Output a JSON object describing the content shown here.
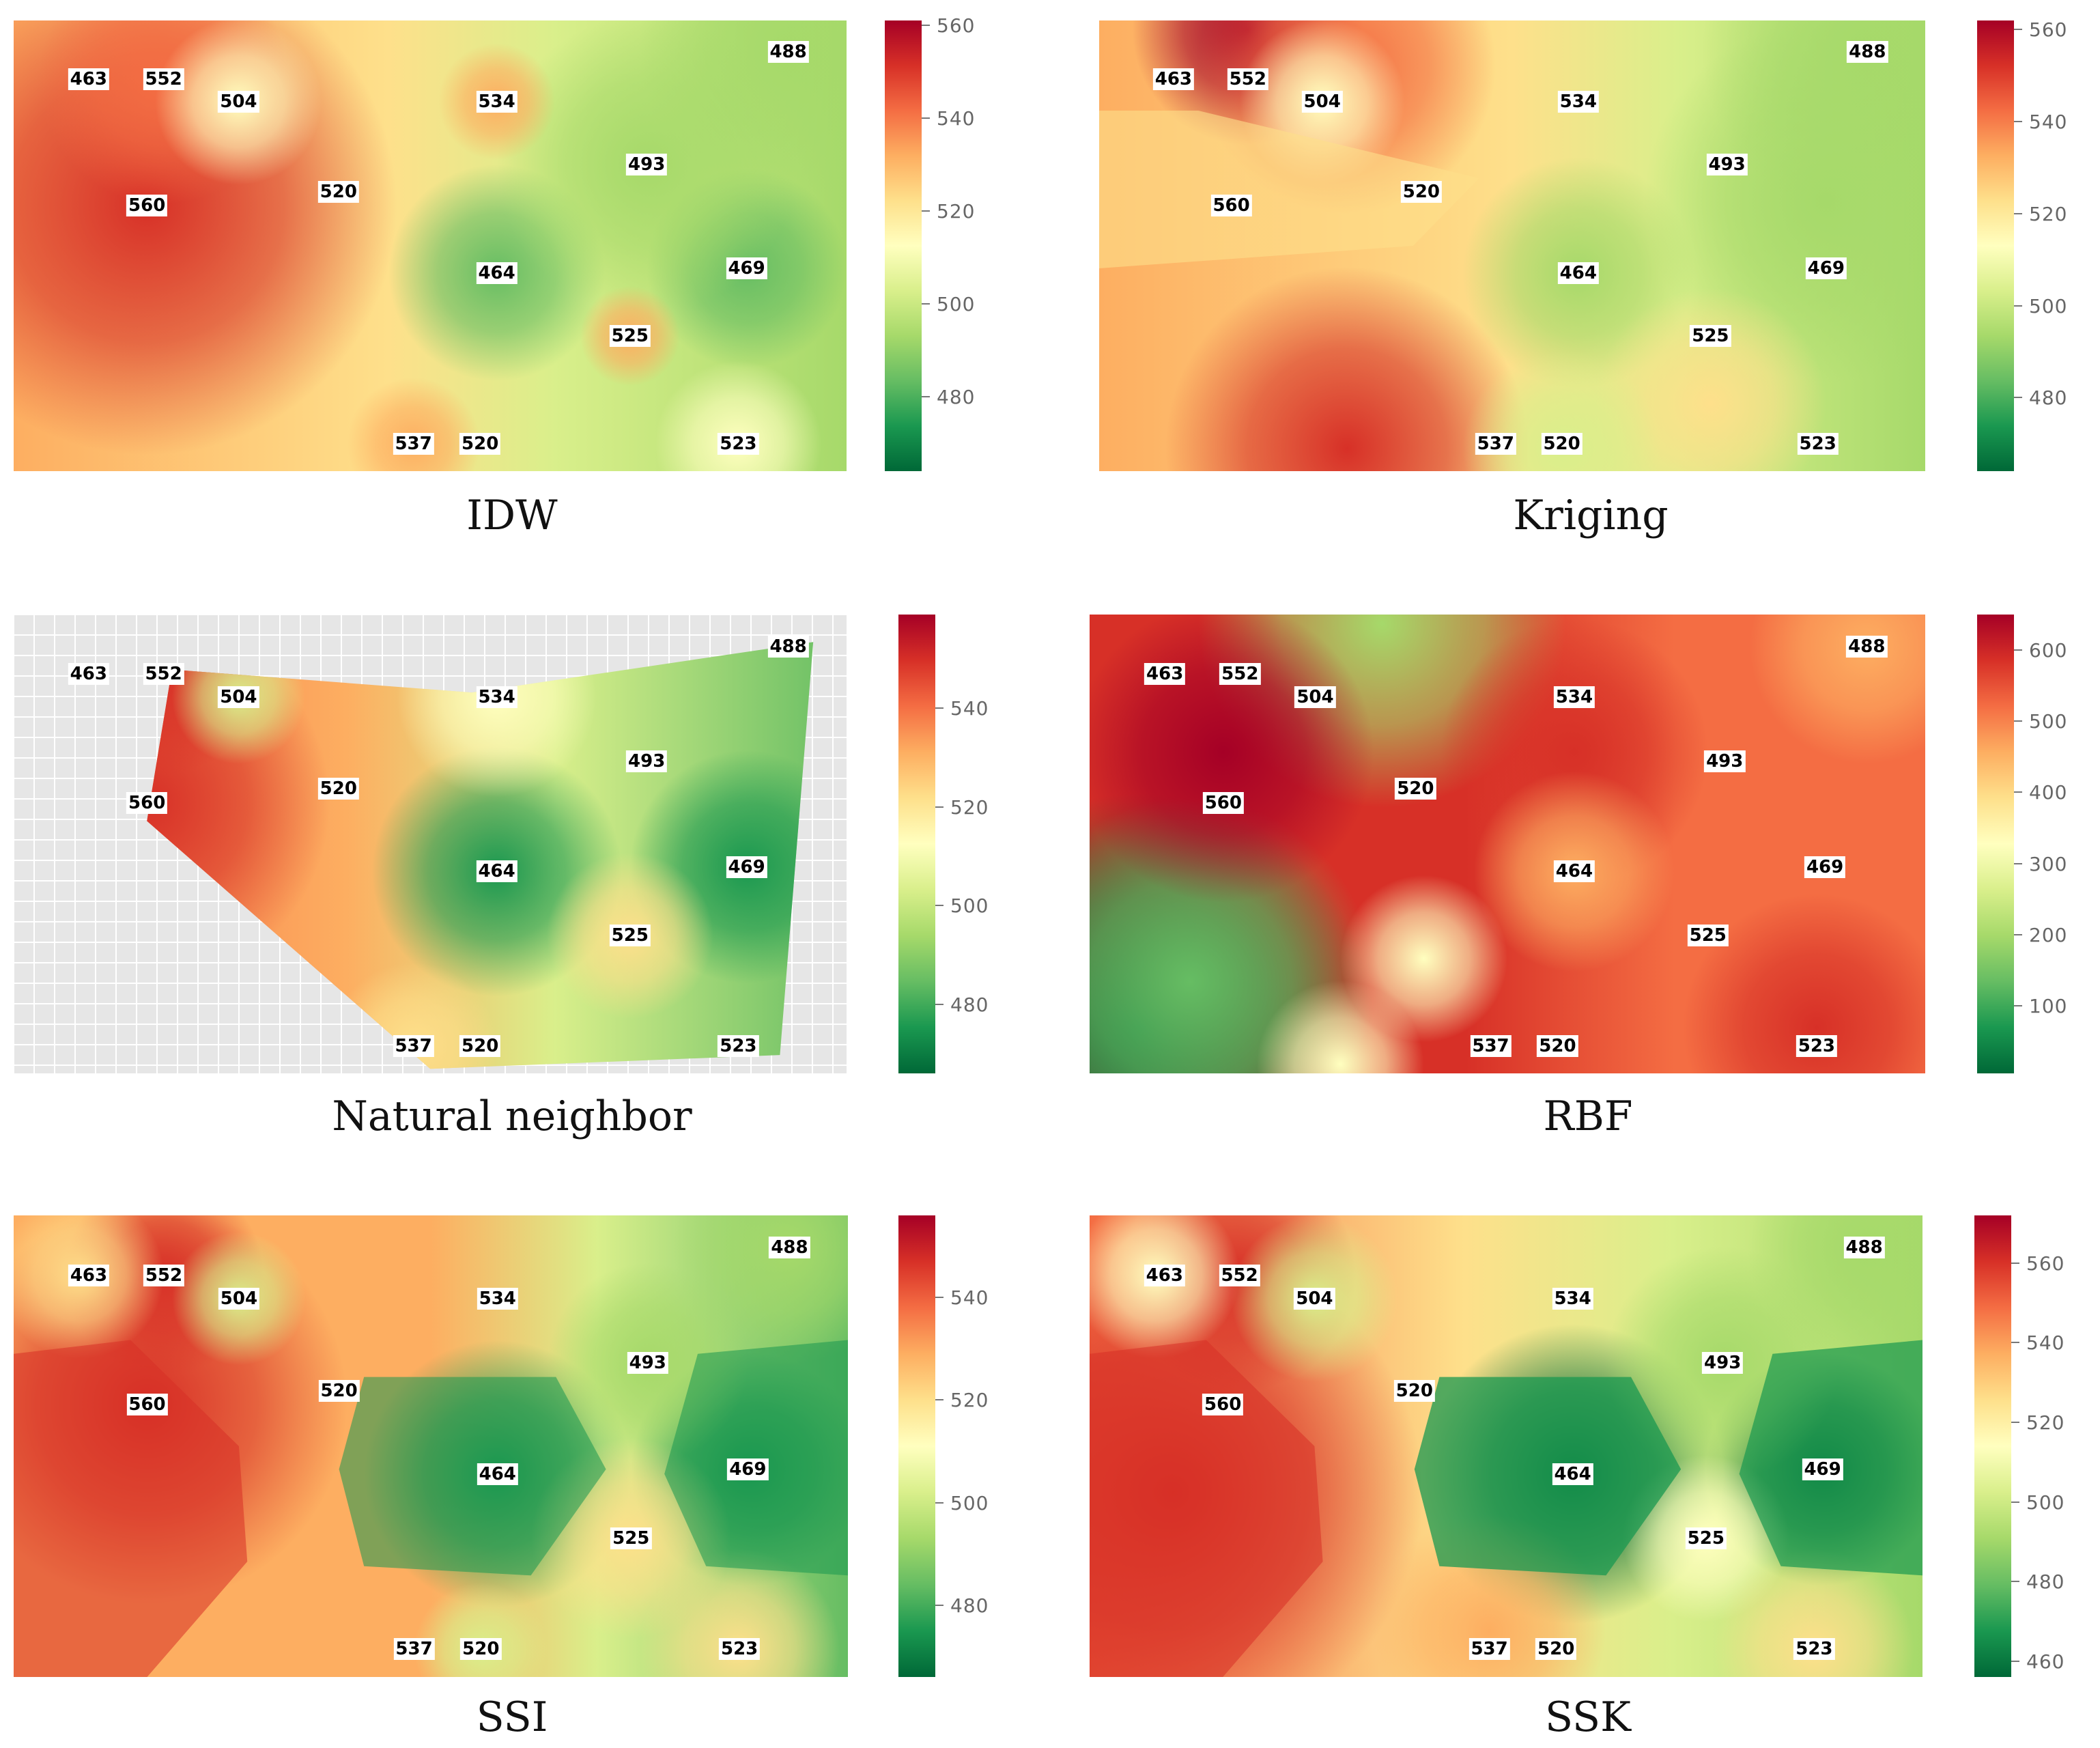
{
  "figure": {
    "colors": {
      "ramp": [
        "#006837",
        "#1a9850",
        "#66bd63",
        "#a6d96a",
        "#d9ef8b",
        "#ffffbf",
        "#fee08b",
        "#fdae61",
        "#f46d43",
        "#d73027",
        "#a50026"
      ],
      "label_bg": "#ffffff",
      "grid_bg": "#e6e6e6"
    }
  },
  "chart_data": [
    {
      "type": "heatmap",
      "title": "IDW",
      "colorbar": {
        "ticks": [
          480,
          500,
          520,
          540,
          560
        ],
        "range": [
          464,
          561
        ]
      },
      "points": [
        {
          "label": "463",
          "x": 0.09,
          "y": 0.13
        },
        {
          "label": "552",
          "x": 0.18,
          "y": 0.13
        },
        {
          "label": "504",
          "x": 0.27,
          "y": 0.18
        },
        {
          "label": "534",
          "x": 0.58,
          "y": 0.18
        },
        {
          "label": "488",
          "x": 0.93,
          "y": 0.07
        },
        {
          "label": "493",
          "x": 0.76,
          "y": 0.32
        },
        {
          "label": "520",
          "x": 0.39,
          "y": 0.38
        },
        {
          "label": "560",
          "x": 0.16,
          "y": 0.41
        },
        {
          "label": "464",
          "x": 0.58,
          "y": 0.56
        },
        {
          "label": "469",
          "x": 0.88,
          "y": 0.55
        },
        {
          "label": "525",
          "x": 0.74,
          "y": 0.7
        },
        {
          "label": "537",
          "x": 0.48,
          "y": 0.94
        },
        {
          "label": "520",
          "x": 0.56,
          "y": 0.94
        },
        {
          "label": "523",
          "x": 0.87,
          "y": 0.94
        }
      ]
    },
    {
      "type": "heatmap",
      "title": "Kriging",
      "colorbar": {
        "ticks": [
          480,
          500,
          520,
          540,
          560
        ],
        "range": [
          464,
          562
        ]
      },
      "points": [
        {
          "label": "463",
          "x": 0.09,
          "y": 0.13
        },
        {
          "label": "552",
          "x": 0.18,
          "y": 0.13
        },
        {
          "label": "504",
          "x": 0.27,
          "y": 0.18
        },
        {
          "label": "534",
          "x": 0.58,
          "y": 0.18
        },
        {
          "label": "488",
          "x": 0.93,
          "y": 0.07
        },
        {
          "label": "493",
          "x": 0.76,
          "y": 0.32
        },
        {
          "label": "520",
          "x": 0.39,
          "y": 0.38
        },
        {
          "label": "560",
          "x": 0.16,
          "y": 0.41
        },
        {
          "label": "464",
          "x": 0.58,
          "y": 0.56
        },
        {
          "label": "469",
          "x": 0.88,
          "y": 0.55
        },
        {
          "label": "525",
          "x": 0.74,
          "y": 0.7
        },
        {
          "label": "537",
          "x": 0.48,
          "y": 0.94
        },
        {
          "label": "520",
          "x": 0.56,
          "y": 0.94
        },
        {
          "label": "523",
          "x": 0.87,
          "y": 0.94
        }
      ]
    },
    {
      "type": "heatmap",
      "title": "Natural neighbor",
      "colorbar": {
        "ticks": [
          480,
          500,
          520,
          540
        ],
        "range": [
          466,
          559
        ]
      },
      "points": [
        {
          "label": "463",
          "x": 0.09,
          "y": 0.13
        },
        {
          "label": "552",
          "x": 0.18,
          "y": 0.13
        },
        {
          "label": "504",
          "x": 0.27,
          "y": 0.18
        },
        {
          "label": "534",
          "x": 0.58,
          "y": 0.18
        },
        {
          "label": "488",
          "x": 0.93,
          "y": 0.07
        },
        {
          "label": "493",
          "x": 0.76,
          "y": 0.32
        },
        {
          "label": "520",
          "x": 0.39,
          "y": 0.38
        },
        {
          "label": "560",
          "x": 0.16,
          "y": 0.41
        },
        {
          "label": "464",
          "x": 0.58,
          "y": 0.56
        },
        {
          "label": "469",
          "x": 0.88,
          "y": 0.55
        },
        {
          "label": "525",
          "x": 0.74,
          "y": 0.7
        },
        {
          "label": "537",
          "x": 0.48,
          "y": 0.94
        },
        {
          "label": "520",
          "x": 0.56,
          "y": 0.94
        },
        {
          "label": "523",
          "x": 0.87,
          "y": 0.94
        }
      ]
    },
    {
      "type": "heatmap",
      "title": "RBF",
      "colorbar": {
        "ticks": [
          100,
          200,
          300,
          400,
          500,
          600
        ],
        "range": [
          5,
          650
        ]
      },
      "points": [
        {
          "label": "463",
          "x": 0.09,
          "y": 0.13
        },
        {
          "label": "552",
          "x": 0.18,
          "y": 0.13
        },
        {
          "label": "504",
          "x": 0.27,
          "y": 0.18
        },
        {
          "label": "534",
          "x": 0.58,
          "y": 0.18
        },
        {
          "label": "488",
          "x": 0.93,
          "y": 0.07
        },
        {
          "label": "493",
          "x": 0.76,
          "y": 0.32
        },
        {
          "label": "520",
          "x": 0.39,
          "y": 0.38
        },
        {
          "label": "560",
          "x": 0.16,
          "y": 0.41
        },
        {
          "label": "464",
          "x": 0.58,
          "y": 0.56
        },
        {
          "label": "469",
          "x": 0.88,
          "y": 0.55
        },
        {
          "label": "525",
          "x": 0.74,
          "y": 0.7
        },
        {
          "label": "537",
          "x": 0.48,
          "y": 0.94
        },
        {
          "label": "520",
          "x": 0.56,
          "y": 0.94
        },
        {
          "label": "523",
          "x": 0.87,
          "y": 0.94
        }
      ]
    },
    {
      "type": "heatmap",
      "title": "SSI",
      "colorbar": {
        "ticks": [
          480,
          500,
          520,
          540
        ],
        "range": [
          466,
          556
        ]
      },
      "points": [
        {
          "label": "463",
          "x": 0.09,
          "y": 0.13
        },
        {
          "label": "552",
          "x": 0.18,
          "y": 0.13
        },
        {
          "label": "504",
          "x": 0.27,
          "y": 0.18
        },
        {
          "label": "534",
          "x": 0.58,
          "y": 0.18
        },
        {
          "label": "488",
          "x": 0.93,
          "y": 0.07
        },
        {
          "label": "493",
          "x": 0.76,
          "y": 0.32
        },
        {
          "label": "520",
          "x": 0.39,
          "y": 0.38
        },
        {
          "label": "560",
          "x": 0.16,
          "y": 0.41
        },
        {
          "label": "464",
          "x": 0.58,
          "y": 0.56
        },
        {
          "label": "469",
          "x": 0.88,
          "y": 0.55
        },
        {
          "label": "525",
          "x": 0.74,
          "y": 0.7
        },
        {
          "label": "537",
          "x": 0.48,
          "y": 0.94
        },
        {
          "label": "520",
          "x": 0.56,
          "y": 0.94
        },
        {
          "label": "523",
          "x": 0.87,
          "y": 0.94
        }
      ]
    },
    {
      "type": "heatmap",
      "title": "SSK",
      "colorbar": {
        "ticks": [
          460,
          480,
          500,
          520,
          540,
          560
        ],
        "range": [
          456,
          572
        ]
      },
      "points": [
        {
          "label": "463",
          "x": 0.09,
          "y": 0.13
        },
        {
          "label": "552",
          "x": 0.18,
          "y": 0.13
        },
        {
          "label": "504",
          "x": 0.27,
          "y": 0.18
        },
        {
          "label": "534",
          "x": 0.58,
          "y": 0.18
        },
        {
          "label": "488",
          "x": 0.93,
          "y": 0.07
        },
        {
          "label": "493",
          "x": 0.76,
          "y": 0.32
        },
        {
          "label": "520",
          "x": 0.39,
          "y": 0.38
        },
        {
          "label": "560",
          "x": 0.16,
          "y": 0.41
        },
        {
          "label": "464",
          "x": 0.58,
          "y": 0.56
        },
        {
          "label": "469",
          "x": 0.88,
          "y": 0.55
        },
        {
          "label": "525",
          "x": 0.74,
          "y": 0.7
        },
        {
          "label": "537",
          "x": 0.48,
          "y": 0.94
        },
        {
          "label": "520",
          "x": 0.56,
          "y": 0.94
        },
        {
          "label": "523",
          "x": 0.87,
          "y": 0.94
        }
      ]
    }
  ]
}
